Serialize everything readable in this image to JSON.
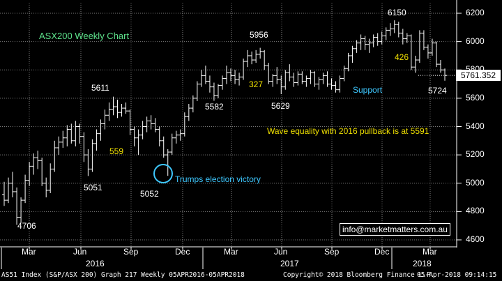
{
  "chart_data": {
    "type": "ohlc",
    "title": "ASX200 Weekly Chart",
    "last_price": "5761.352",
    "y_ticks": [
      4600,
      4800,
      5000,
      5200,
      5400,
      5600,
      5800,
      6000,
      6200
    ],
    "x_ticks": [
      "Mar",
      "Jun",
      "Sep",
      "Dec",
      "Mar",
      "Jun",
      "Sep",
      "Dec",
      "Mar"
    ],
    "years": [
      "2016",
      "2017",
      "2018"
    ],
    "ylim": [
      4560,
      6300
    ],
    "series": [
      {
        "values": [
          [
            4920,
            5010,
            4840,
            4880
          ],
          [
            4880,
            5040,
            4860,
            5000
          ],
          [
            5000,
            5080,
            4900,
            4940
          ],
          [
            4940,
            4970,
            4706,
            4760
          ],
          [
            4760,
            4900,
            4720,
            4880
          ],
          [
            4880,
            5060,
            4860,
            5020
          ],
          [
            5020,
            5150,
            4980,
            5120
          ],
          [
            5120,
            5210,
            5060,
            5180
          ],
          [
            5180,
            5230,
            5100,
            5160
          ],
          [
            5160,
            5180,
            4980,
            5000
          ],
          [
            5000,
            5040,
            4900,
            4950
          ],
          [
            4950,
            5140,
            4930,
            5100
          ],
          [
            5100,
            5300,
            5080,
            5250
          ],
          [
            5250,
            5330,
            5200,
            5290
          ],
          [
            5290,
            5370,
            5250,
            5320
          ],
          [
            5320,
            5410,
            5260,
            5380
          ],
          [
            5380,
            5420,
            5280,
            5300
          ],
          [
            5300,
            5440,
            5260,
            5400
          ],
          [
            5400,
            5420,
            5280,
            5330
          ],
          [
            5330,
            5360,
            5150,
            5200
          ],
          [
            5200,
            5240,
            5051,
            5100
          ],
          [
            5100,
            5310,
            5080,
            5280
          ],
          [
            5280,
            5380,
            5230,
            5350
          ],
          [
            5350,
            5450,
            5300,
            5420
          ],
          [
            5420,
            5520,
            5380,
            5480
          ],
          [
            5480,
            5570,
            5440,
            5520
          ],
          [
            5520,
            5611,
            5480,
            5540
          ],
          [
            5540,
            5590,
            5460,
            5500
          ],
          [
            5500,
            5560,
            5470,
            5530
          ],
          [
            5530,
            5570,
            5490,
            5510
          ],
          [
            5510,
            5520,
            5340,
            5380
          ],
          [
            5380,
            5400,
            5260,
            5320
          ],
          [
            5320,
            5380,
            5200,
            5340
          ],
          [
            5340,
            5440,
            5310,
            5400
          ],
          [
            5400,
            5470,
            5360,
            5440
          ],
          [
            5440,
            5480,
            5380,
            5420
          ],
          [
            5420,
            5460,
            5360,
            5380
          ],
          [
            5380,
            5400,
            5260,
            5300
          ],
          [
            5300,
            5330,
            5180,
            5200
          ],
          [
            5200,
            5240,
            5052,
            5220
          ],
          [
            5220,
            5350,
            5200,
            5320
          ],
          [
            5320,
            5370,
            5280,
            5340
          ],
          [
            5340,
            5380,
            5300,
            5350
          ],
          [
            5350,
            5500,
            5330,
            5470
          ],
          [
            5470,
            5560,
            5440,
            5530
          ],
          [
            5530,
            5620,
            5500,
            5600
          ],
          [
            5600,
            5720,
            5580,
            5700
          ],
          [
            5700,
            5800,
            5680,
            5760
          ],
          [
            5760,
            5830,
            5700,
            5720
          ],
          [
            5720,
            5760,
            5640,
            5680
          ],
          [
            5680,
            5710,
            5582,
            5620
          ],
          [
            5620,
            5700,
            5600,
            5690
          ],
          [
            5690,
            5760,
            5660,
            5740
          ],
          [
            5740,
            5830,
            5700,
            5780
          ],
          [
            5780,
            5810,
            5720,
            5760
          ],
          [
            5760,
            5800,
            5700,
            5730
          ],
          [
            5730,
            5780,
            5690,
            5750
          ],
          [
            5750,
            5880,
            5730,
            5860
          ],
          [
            5860,
            5940,
            5820,
            5900
          ],
          [
            5900,
            5930,
            5840,
            5870
          ],
          [
            5870,
            5940,
            5850,
            5910
          ],
          [
            5910,
            5956,
            5880,
            5930
          ],
          [
            5930,
            5940,
            5800,
            5830
          ],
          [
            5830,
            5850,
            5700,
            5720
          ],
          [
            5720,
            5770,
            5680,
            5760
          ],
          [
            5760,
            5820,
            5700,
            5730
          ],
          [
            5730,
            5760,
            5629,
            5680
          ],
          [
            5680,
            5800,
            5660,
            5780
          ],
          [
            5780,
            5840,
            5720,
            5750
          ],
          [
            5750,
            5780,
            5680,
            5710
          ],
          [
            5710,
            5790,
            5690,
            5770
          ],
          [
            5770,
            5790,
            5700,
            5720
          ],
          [
            5720,
            5760,
            5680,
            5740
          ],
          [
            5740,
            5800,
            5700,
            5780
          ],
          [
            5780,
            5790,
            5680,
            5700
          ],
          [
            5700,
            5750,
            5660,
            5730
          ],
          [
            5730,
            5780,
            5700,
            5760
          ],
          [
            5760,
            5790,
            5680,
            5700
          ],
          [
            5700,
            5740,
            5660,
            5690
          ],
          [
            5690,
            5720,
            5640,
            5660
          ],
          [
            5660,
            5760,
            5640,
            5740
          ],
          [
            5740,
            5830,
            5720,
            5810
          ],
          [
            5810,
            5920,
            5790,
            5900
          ],
          [
            5900,
            5970,
            5850,
            5950
          ],
          [
            5950,
            6010,
            5920,
            5990
          ],
          [
            5990,
            6050,
            5940,
            6020
          ],
          [
            6020,
            6040,
            5940,
            5980
          ],
          [
            5980,
            6020,
            5920,
            5990
          ],
          [
            5990,
            6050,
            5960,
            6030
          ],
          [
            6030,
            6060,
            5970,
            6000
          ],
          [
            6000,
            6070,
            5980,
            6040
          ],
          [
            6040,
            6100,
            6010,
            6080
          ],
          [
            6080,
            6130,
            6040,
            6090
          ],
          [
            6090,
            6150,
            6060,
            6120
          ],
          [
            6120,
            6140,
            6030,
            6060
          ],
          [
            6060,
            6090,
            5980,
            6020
          ],
          [
            6020,
            6060,
            5990,
            6040
          ],
          [
            6040,
            6050,
            5800,
            5820
          ],
          [
            5820,
            5900,
            5780,
            5870
          ],
          [
            5870,
            6080,
            5850,
            6060
          ],
          [
            6060,
            6080,
            5940,
            5960
          ],
          [
            5960,
            5980,
            5880,
            5920
          ],
          [
            5920,
            6020,
            5900,
            5990
          ],
          [
            5990,
            6000,
            5820,
            5840
          ],
          [
            5840,
            5870,
            5780,
            5800
          ],
          [
            5800,
            5810,
            5724,
            5761
          ]
        ]
      }
    ],
    "annotations": {
      "labels": [
        {
          "text": "4706",
          "color": "white"
        },
        {
          "text": "5051",
          "color": "white"
        },
        {
          "text": "5611",
          "color": "white"
        },
        {
          "text": "559",
          "color": "yellow"
        },
        {
          "text": "5052",
          "color": "white"
        },
        {
          "text": "5582",
          "color": "white"
        },
        {
          "text": "5956",
          "color": "white"
        },
        {
          "text": "327",
          "color": "yellow"
        },
        {
          "text": "5629",
          "color": "white"
        },
        {
          "text": "6150",
          "color": "white"
        },
        {
          "text": "426",
          "color": "yellow"
        },
        {
          "text": "5724",
          "color": "white"
        }
      ],
      "support_label": "Support",
      "support_level": 5730,
      "wave_text": "Wave equality with 2016 pullback is at 5591",
      "election_text": "Trumps election victory",
      "email": "info@marketmatters.com.au"
    },
    "colors": {
      "bars": "#ffffff",
      "grid": "#7a7a7a",
      "title": "#5ce08a",
      "yellow": "#f0e000",
      "cyan": "#3ec8ff"
    }
  },
  "footer": {
    "left": "AS51 Index (S&P/ASX 200) Graph 217  Weekly 05APR2016-05APR2018",
    "copyright": "Copyright© 2018 Bloomberg Finance L.P.",
    "timestamp": "05-Apr-2018 09:14:15"
  }
}
